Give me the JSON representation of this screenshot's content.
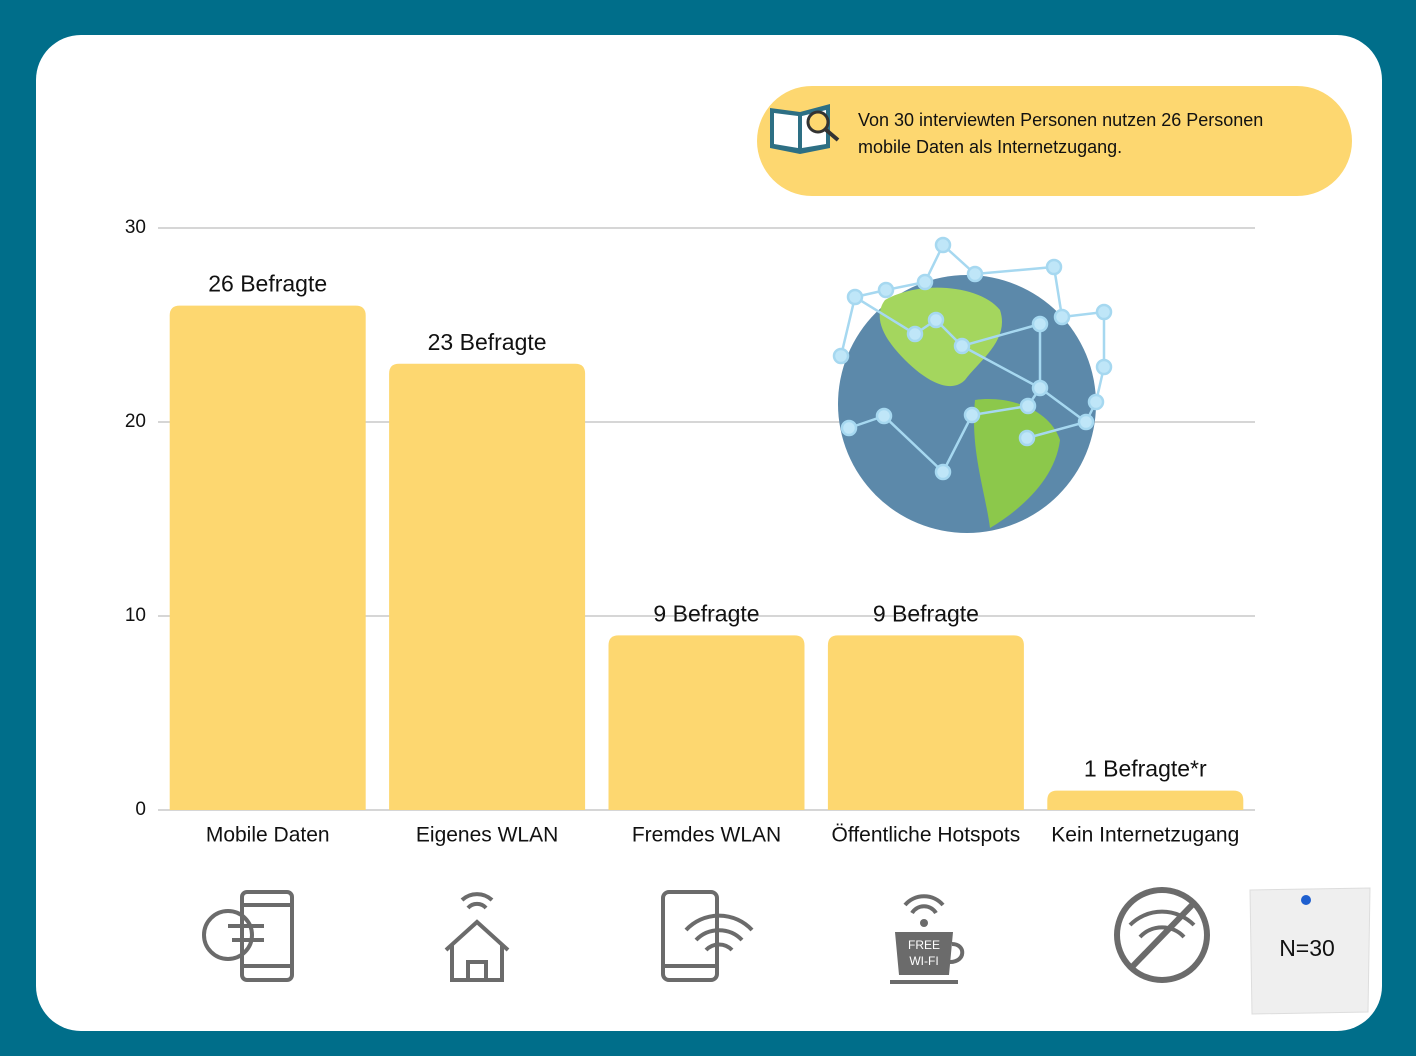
{
  "chart_data": {
    "type": "bar",
    "categories": [
      "Mobile Daten",
      "Eigenes WLAN",
      "Fremdes WLAN",
      "Öffentliche Hotspots",
      "Kein Internetzugang"
    ],
    "values": [
      26,
      23,
      9,
      9,
      1
    ],
    "value_labels": [
      "26 Befragte",
      "23 Befragte",
      "9 Befragte",
      "9 Befragte",
      "1 Befragte*r"
    ],
    "color": "#fdd770",
    "ylim": [
      0,
      30
    ],
    "yticks": [
      0,
      10,
      20,
      30
    ],
    "grid": true,
    "annotation": [
      "Von 30 interviewten Personen nutzen 26 Personen",
      "mobile Daten als Internetzugang."
    ],
    "note": "N=30",
    "icon_labels": [
      "FREE",
      "WI-FI"
    ]
  }
}
